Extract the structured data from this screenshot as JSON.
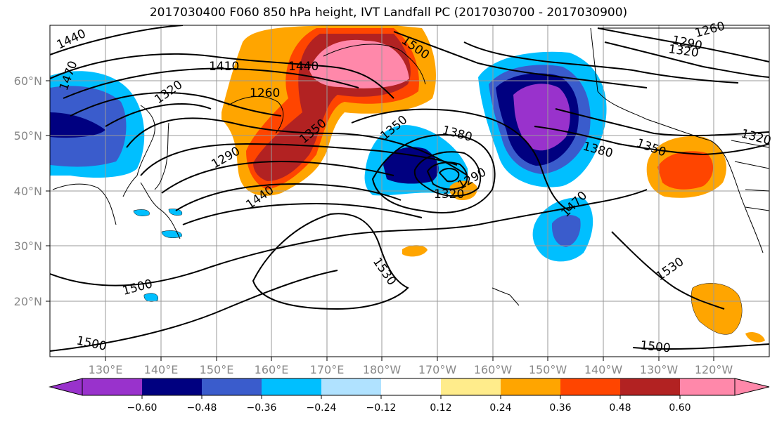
{
  "title": "2017030400 F060 850 hPa height, IVT Landfall PC (2017030700 - 2017030900)",
  "lon_ticks": [
    "130°E",
    "140°E",
    "150°E",
    "160°E",
    "170°E",
    "180°W",
    "170°W",
    "160°W",
    "150°W",
    "140°W",
    "130°W",
    "120°W"
  ],
  "lat_ticks": [
    "60°N",
    "50°N",
    "40°N",
    "30°N",
    "20°N"
  ],
  "colorbar": {
    "colors": [
      "#9932cc",
      "#000080",
      "#3a5ccc",
      "#00bfff",
      "#b0e2ff",
      "#ffffff",
      "#ffec8b",
      "#ffa500",
      "#ff4500",
      "#b22222",
      "#ff88aa"
    ],
    "labels": [
      "−0.60",
      "−0.48",
      "−0.36",
      "−0.24",
      "−0.12",
      "0.12",
      "0.24",
      "0.36",
      "0.48",
      "0.60"
    ]
  },
  "contour_labels": [
    "1440",
    "1410",
    "1470",
    "1320",
    "1260",
    "1290",
    "1350",
    "1500",
    "1380",
    "1440",
    "1320",
    "1290",
    "1350",
    "1470",
    "1530",
    "1530",
    "1500",
    "1500",
    "1260",
    "1290",
    "1320",
    "1440",
    "1320",
    "1500",
    "1380",
    "1350"
  ]
}
